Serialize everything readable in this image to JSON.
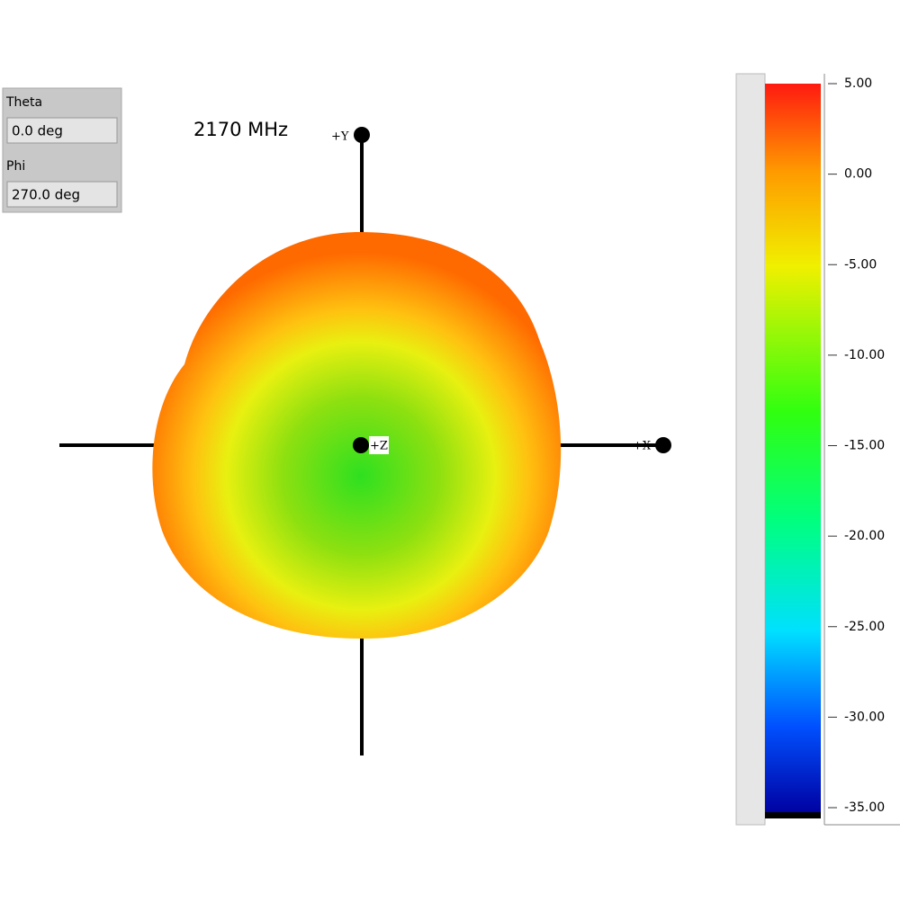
{
  "panel": {
    "theta_label": "Theta",
    "theta_value": "0.0 deg",
    "phi_label": "Phi",
    "phi_value": "270.0 deg"
  },
  "frequency": "2170 MHz",
  "axes": {
    "x": "+X",
    "y": "+Y",
    "z": "+Z"
  },
  "colorbar": {
    "range": [
      -35,
      5
    ],
    "ticks": [
      {
        "value": 5,
        "label": "5.00"
      },
      {
        "value": 0,
        "label": "0.00"
      },
      {
        "value": -5,
        "label": "-5.00"
      },
      {
        "value": -10,
        "label": "-10.00"
      },
      {
        "value": -15,
        "label": "-15.00"
      },
      {
        "value": -20,
        "label": "-20.00"
      },
      {
        "value": -25,
        "label": "-25.00"
      },
      {
        "value": -30,
        "label": "-30.00"
      },
      {
        "value": -35,
        "label": "-35.00"
      }
    ]
  }
}
